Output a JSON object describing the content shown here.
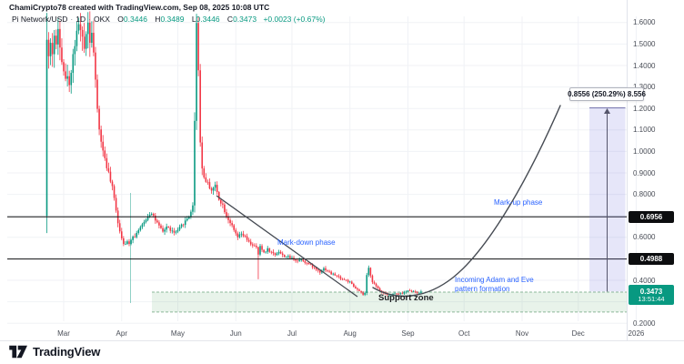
{
  "header": {
    "credit_line": "ChamiCrypto78 created with TradingView.com, Sep 08, 2025 10:08 UTC"
  },
  "legend": {
    "symbol": "Pi Network/USD",
    "separator": "·",
    "interval": "1D",
    "exchange": "OKX",
    "open_key": "O",
    "open": "0.3446",
    "high_key": "H",
    "high": "0.3489",
    "low_key": "L",
    "low": "0.3446",
    "close_key": "C",
    "close": "0.3473",
    "change": "+0.0023 (+0.67%)"
  },
  "annotations": {
    "markdown_phase": "Mark-down phase",
    "markup_phase": "Mark-up phase",
    "incoming_pattern": "Incoming Adam and Eve pattern formation",
    "support_zone": "Support zone",
    "measure_label": "0.8556 (250.29%) 8.556"
  },
  "price_scale": {
    "ticks": [
      {
        "label": "1.6000",
        "price": 1.6
      },
      {
        "label": "1.5000",
        "price": 1.5
      },
      {
        "label": "1.4000",
        "price": 1.4
      },
      {
        "label": "1.3000",
        "price": 1.3
      },
      {
        "label": "1.2000",
        "price": 1.2
      },
      {
        "label": "1.1000",
        "price": 1.1
      },
      {
        "label": "1.0000",
        "price": 1.0
      },
      {
        "label": "0.9000",
        "price": 0.9
      },
      {
        "label": "0.8000",
        "price": 0.8
      },
      {
        "label": "0.6000",
        "price": 0.6
      },
      {
        "label": "0.4000",
        "price": 0.4
      },
      {
        "label": "0.2000",
        "price": 0.2
      }
    ],
    "black_labels": [
      {
        "label": "0.6956",
        "price": 0.6956
      },
      {
        "label": "0.4988",
        "price": 0.4988
      }
    ],
    "last_price_label": {
      "price_text": "0.3473",
      "countdown": "13:51:44",
      "price": 0.3473
    }
  },
  "time_scale": {
    "labels": [
      {
        "text": "Mar",
        "day": 9
      },
      {
        "text": "Apr",
        "day": 40
      },
      {
        "text": "May",
        "day": 70
      },
      {
        "text": "Jun",
        "day": 101
      },
      {
        "text": "Jul",
        "day": 131
      },
      {
        "text": "Aug",
        "day": 162
      },
      {
        "text": "Sep",
        "day": 193
      },
      {
        "text": "Oct",
        "day": 223
      },
      {
        "text": "Nov",
        "day": 254
      },
      {
        "text": "Dec",
        "day": 284
      },
      {
        "text": "2026",
        "day": 315
      }
    ]
  },
  "chart_data": {
    "type": "candlestick",
    "symbol": "Pi Network/USD",
    "interval": "1D",
    "start_date": "2025-02-20",
    "ylim": [
      0.2,
      1.66
    ],
    "grid_prices": [
      0.2,
      0.3,
      0.4,
      0.5,
      0.6,
      0.7,
      0.8,
      0.9,
      1.0,
      1.1,
      1.2,
      1.3,
      1.4,
      1.5,
      1.6
    ],
    "levels": {
      "resistance_1": 0.6956,
      "resistance_2": 0.4988,
      "support_zone_top": 0.345,
      "support_zone_bottom": 0.252,
      "measure_from": 0.3473,
      "measure_to": 1.2029,
      "measure_delta": 0.8556,
      "measure_pct": 250.29
    },
    "first_candle": {
      "open": 0.7,
      "high": 1.645,
      "low": 0.62,
      "close": 1.52
    },
    "keypoints_day_close": [
      [
        1,
        1.44
      ],
      [
        2,
        1.5
      ],
      [
        3,
        1.46
      ],
      [
        4,
        1.54
      ],
      [
        5,
        1.49
      ],
      [
        6,
        1.57
      ],
      [
        7,
        1.5
      ],
      [
        8,
        1.43
      ],
      [
        9,
        1.38
      ],
      [
        10,
        1.33
      ],
      [
        11,
        1.36
      ],
      [
        12,
        1.3
      ],
      [
        13,
        1.38
      ],
      [
        14,
        1.45
      ],
      [
        15,
        1.5
      ],
      [
        16,
        1.55
      ],
      [
        17,
        1.6
      ],
      [
        18,
        1.56
      ],
      [
        19,
        1.52
      ],
      [
        20,
        1.48
      ],
      [
        21,
        1.56
      ],
      [
        22,
        1.6
      ],
      [
        23,
        1.52
      ],
      [
        24,
        1.56
      ],
      [
        25,
        1.46
      ],
      [
        26,
        1.32
      ],
      [
        27,
        1.2
      ],
      [
        28,
        1.1
      ],
      [
        29,
        1.05
      ],
      [
        30,
        1.0
      ],
      [
        31,
        0.97
      ],
      [
        32,
        0.93
      ],
      [
        33,
        0.9
      ],
      [
        34,
        0.86
      ],
      [
        35,
        0.83
      ],
      [
        36,
        0.78
      ],
      [
        37,
        0.73
      ],
      [
        38,
        0.67
      ],
      [
        39,
        0.63
      ],
      [
        40,
        0.6
      ],
      [
        41,
        0.575
      ],
      [
        42,
        0.565
      ],
      [
        43,
        0.58
      ],
      [
        44,
        0.575
      ],
      [
        45,
        0.59
      ],
      [
        46,
        0.61
      ],
      [
        47,
        0.6
      ],
      [
        48,
        0.625
      ],
      [
        49,
        0.635
      ],
      [
        50,
        0.645
      ],
      [
        51,
        0.655
      ],
      [
        52,
        0.67
      ],
      [
        53,
        0.685
      ],
      [
        54,
        0.7
      ],
      [
        55,
        0.71
      ],
      [
        56,
        0.715
      ],
      [
        57,
        0.7
      ],
      [
        58,
        0.68
      ],
      [
        60,
        0.65
      ],
      [
        62,
        0.625
      ],
      [
        64,
        0.65
      ],
      [
        66,
        0.635
      ],
      [
        68,
        0.62
      ],
      [
        70,
        0.63
      ],
      [
        72,
        0.655
      ],
      [
        74,
        0.675
      ],
      [
        76,
        0.7
      ],
      [
        78,
        0.745
      ],
      [
        79,
        1.15
      ],
      [
        80,
        1.6
      ],
      [
        81,
        1.38
      ],
      [
        82,
        1.05
      ],
      [
        83,
        0.92
      ],
      [
        84,
        0.88
      ],
      [
        86,
        0.85
      ],
      [
        88,
        0.82
      ],
      [
        90,
        0.84
      ],
      [
        92,
        0.78
      ],
      [
        94,
        0.75
      ],
      [
        96,
        0.7
      ],
      [
        98,
        0.67
      ],
      [
        100,
        0.63
      ],
      [
        102,
        0.6
      ],
      [
        104,
        0.615
      ],
      [
        106,
        0.6
      ],
      [
        108,
        0.575
      ],
      [
        110,
        0.565
      ],
      [
        112,
        0.55
      ],
      [
        113,
        0.52
      ],
      [
        114,
        0.555
      ],
      [
        116,
        0.53
      ],
      [
        118,
        0.545
      ],
      [
        120,
        0.53
      ],
      [
        122,
        0.52
      ],
      [
        124,
        0.535
      ],
      [
        126,
        0.515
      ],
      [
        128,
        0.51
      ],
      [
        130,
        0.505
      ],
      [
        132,
        0.5
      ],
      [
        134,
        0.49
      ],
      [
        136,
        0.5
      ],
      [
        138,
        0.485
      ],
      [
        140,
        0.475
      ],
      [
        142,
        0.465
      ],
      [
        144,
        0.45
      ],
      [
        146,
        0.44
      ],
      [
        148,
        0.455
      ],
      [
        150,
        0.445
      ],
      [
        152,
        0.43
      ],
      [
        154,
        0.425
      ],
      [
        156,
        0.415
      ],
      [
        158,
        0.405
      ],
      [
        160,
        0.4
      ],
      [
        162,
        0.39
      ],
      [
        164,
        0.37
      ],
      [
        166,
        0.355
      ],
      [
        168,
        0.34
      ],
      [
        169,
        0.333
      ],
      [
        170,
        0.34
      ],
      [
        171,
        0.42
      ],
      [
        172,
        0.455
      ],
      [
        173,
        0.425
      ],
      [
        174,
        0.395
      ],
      [
        176,
        0.37
      ],
      [
        178,
        0.352
      ],
      [
        180,
        0.342
      ],
      [
        182,
        0.336
      ],
      [
        184,
        0.333
      ],
      [
        186,
        0.338
      ],
      [
        188,
        0.335
      ],
      [
        190,
        0.34
      ],
      [
        192,
        0.347
      ],
      [
        194,
        0.354
      ],
      [
        196,
        0.346
      ],
      [
        198,
        0.342
      ],
      [
        200,
        0.3473
      ]
    ],
    "special_wicks": [
      {
        "day": 113,
        "low": 0.405
      },
      {
        "day": 80,
        "high": 1.63
      }
    ]
  },
  "colors": {
    "up": "#089981",
    "down": "#f23645",
    "annotation_blue": "#2962ff",
    "support_fill": "rgba(76,160,92,0.13)",
    "support_border": "#8cb89b",
    "measure_fill": "rgba(118,118,222,0.18)",
    "measure_line": "#55556b",
    "measure_edge": "#7a78b0",
    "ray_black": "#111111",
    "grid": "#f0f2f6",
    "trend_line": "#454a52",
    "vertical_marker": "rgba(8,153,129,0.45)"
  },
  "footer": {
    "brand": "TradingView"
  }
}
